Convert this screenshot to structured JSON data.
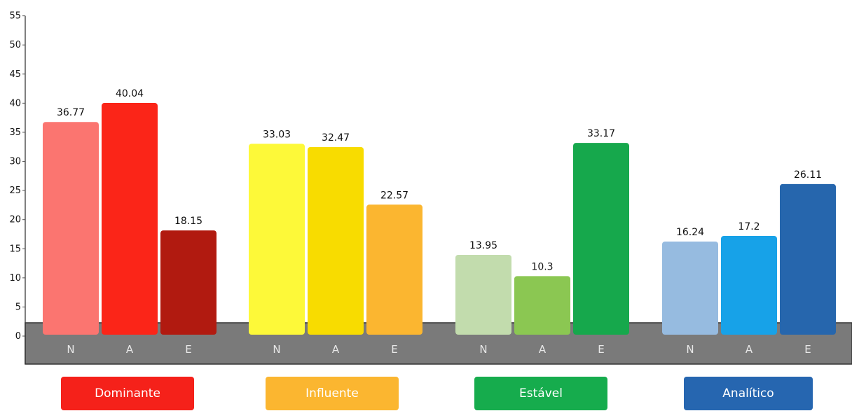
{
  "chart_data": {
    "type": "bar",
    "ylim": [
      0,
      55
    ],
    "yticks": [
      0,
      5,
      10,
      15,
      20,
      25,
      30,
      35,
      40,
      45,
      50,
      55
    ],
    "groups": [
      {
        "name": "Dominante",
        "color": "#f5211a",
        "bars": [
          {
            "label": "N",
            "value": 36.77,
            "value_label": "36.77",
            "color": "#fb7570"
          },
          {
            "label": "A",
            "value": 40.04,
            "value_label": "40.04",
            "color": "#fb2518"
          },
          {
            "label": "E",
            "value": 18.15,
            "value_label": "18.15",
            "color": "#b11a10"
          }
        ]
      },
      {
        "name": "Influente",
        "color": "#fbb630",
        "bars": [
          {
            "label": "N",
            "value": 33.03,
            "value_label": "33.03",
            "color": "#fdf939"
          },
          {
            "label": "A",
            "value": 32.47,
            "value_label": "32.47",
            "color": "#f8dc00"
          },
          {
            "label": "E",
            "value": 22.57,
            "value_label": "22.57",
            "color": "#fbb630"
          }
        ]
      },
      {
        "name": "Estável",
        "color": "#16ac4d",
        "bars": [
          {
            "label": "N",
            "value": 13.95,
            "value_label": "13.95",
            "color": "#c2dcad"
          },
          {
            "label": "A",
            "value": 10.3,
            "value_label": "10.3",
            "color": "#8bc752"
          },
          {
            "label": "E",
            "value": 33.17,
            "value_label": "33.17",
            "color": "#16a84c"
          }
        ]
      },
      {
        "name": "Analítico",
        "color": "#2666b0",
        "bars": [
          {
            "label": "N",
            "value": 16.24,
            "value_label": "16.24",
            "color": "#96bbe0"
          },
          {
            "label": "A",
            "value": 17.2,
            "value_label": "17.2",
            "color": "#17a2e8"
          },
          {
            "label": "E",
            "value": 26.11,
            "value_label": "26.11",
            "color": "#2666ad"
          }
        ]
      }
    ],
    "grid": false,
    "base_band_color": "#7a7a7a"
  },
  "legend": [
    {
      "label": "Dominante",
      "color": "#f5211a"
    },
    {
      "label": "Influente",
      "color": "#fbb630"
    },
    {
      "label": "Estável",
      "color": "#16ac4d"
    },
    {
      "label": "Analítico",
      "color": "#2666b0"
    }
  ]
}
